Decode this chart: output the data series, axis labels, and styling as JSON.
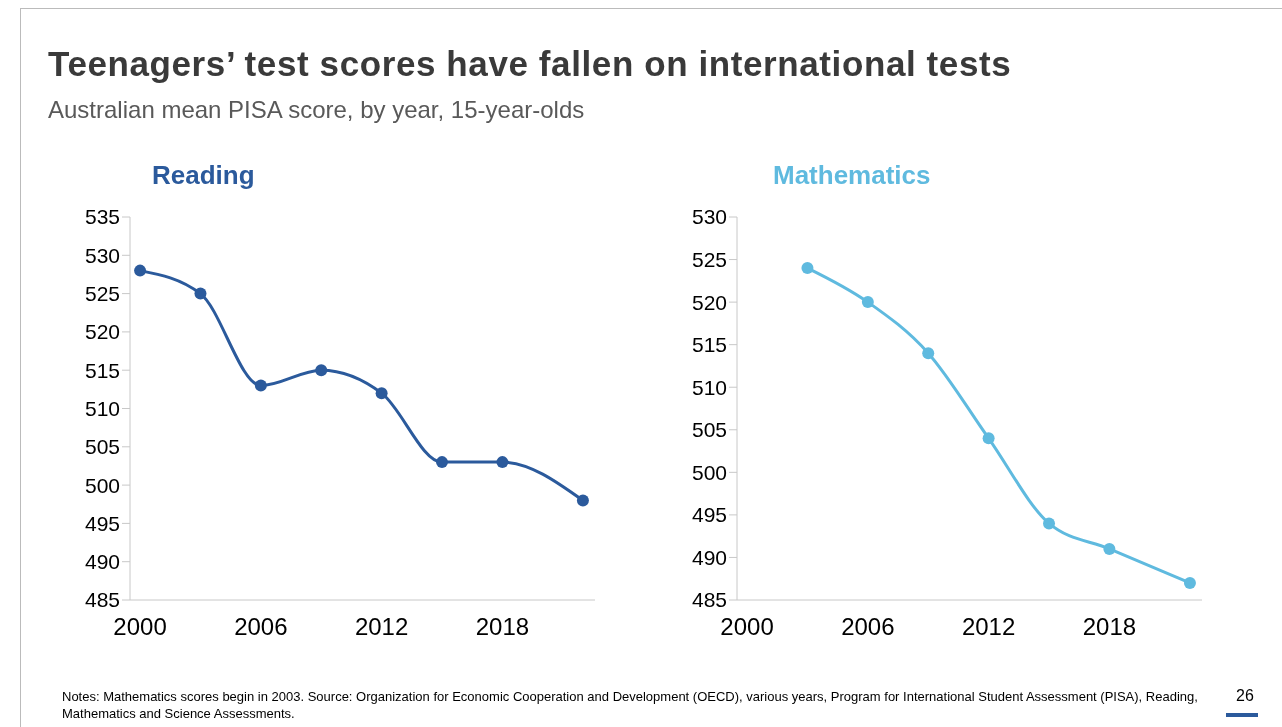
{
  "chart_data": [
    {
      "type": "line",
      "title": "Teenagers’ test scores have fallen on international tests",
      "subtitle": "Australian mean PISA score, by year, 15-year-olds",
      "x": [
        2000,
        2003,
        2006,
        2009,
        2012,
        2015,
        2018,
        2022
      ],
      "series": [
        {
          "name": "Reading",
          "color": "#2b5a9c",
          "values": [
            528,
            525,
            513,
            515,
            512,
            503,
            503,
            498
          ]
        }
      ],
      "xlim": [
        1999.5,
        2022.6
      ],
      "xticks": [
        2000,
        2006,
        2012,
        2018
      ],
      "ylim": [
        485,
        535
      ],
      "yticks": [
        485,
        490,
        495,
        500,
        505,
        510,
        515,
        520,
        525,
        530,
        535
      ],
      "grid": false,
      "marker": "circle",
      "line_style": "solid"
    },
    {
      "type": "line",
      "x": [
        2003,
        2006,
        2009,
        2012,
        2015,
        2018,
        2022
      ],
      "series": [
        {
          "name": "Mathematics",
          "color": "#5fbadf",
          "values": [
            524,
            520,
            514,
            504,
            494,
            491,
            487
          ]
        }
      ],
      "xlim": [
        1999.5,
        2022.6
      ],
      "xticks": [
        2000,
        2006,
        2012,
        2018
      ],
      "ylim": [
        485,
        530
      ],
      "yticks": [
        485,
        490,
        495,
        500,
        505,
        510,
        515,
        520,
        525,
        530
      ],
      "grid": false,
      "marker": "circle",
      "line_style": "solid",
      "annotations": [
        "Notes: Mathematics scores begin in 2003. Source: Organization for Economic Cooperation and Development (OECD), various years, Program for International Student Assessment (PISA), Reading, Mathematics and Science Assessments.",
        "26"
      ]
    }
  ]
}
